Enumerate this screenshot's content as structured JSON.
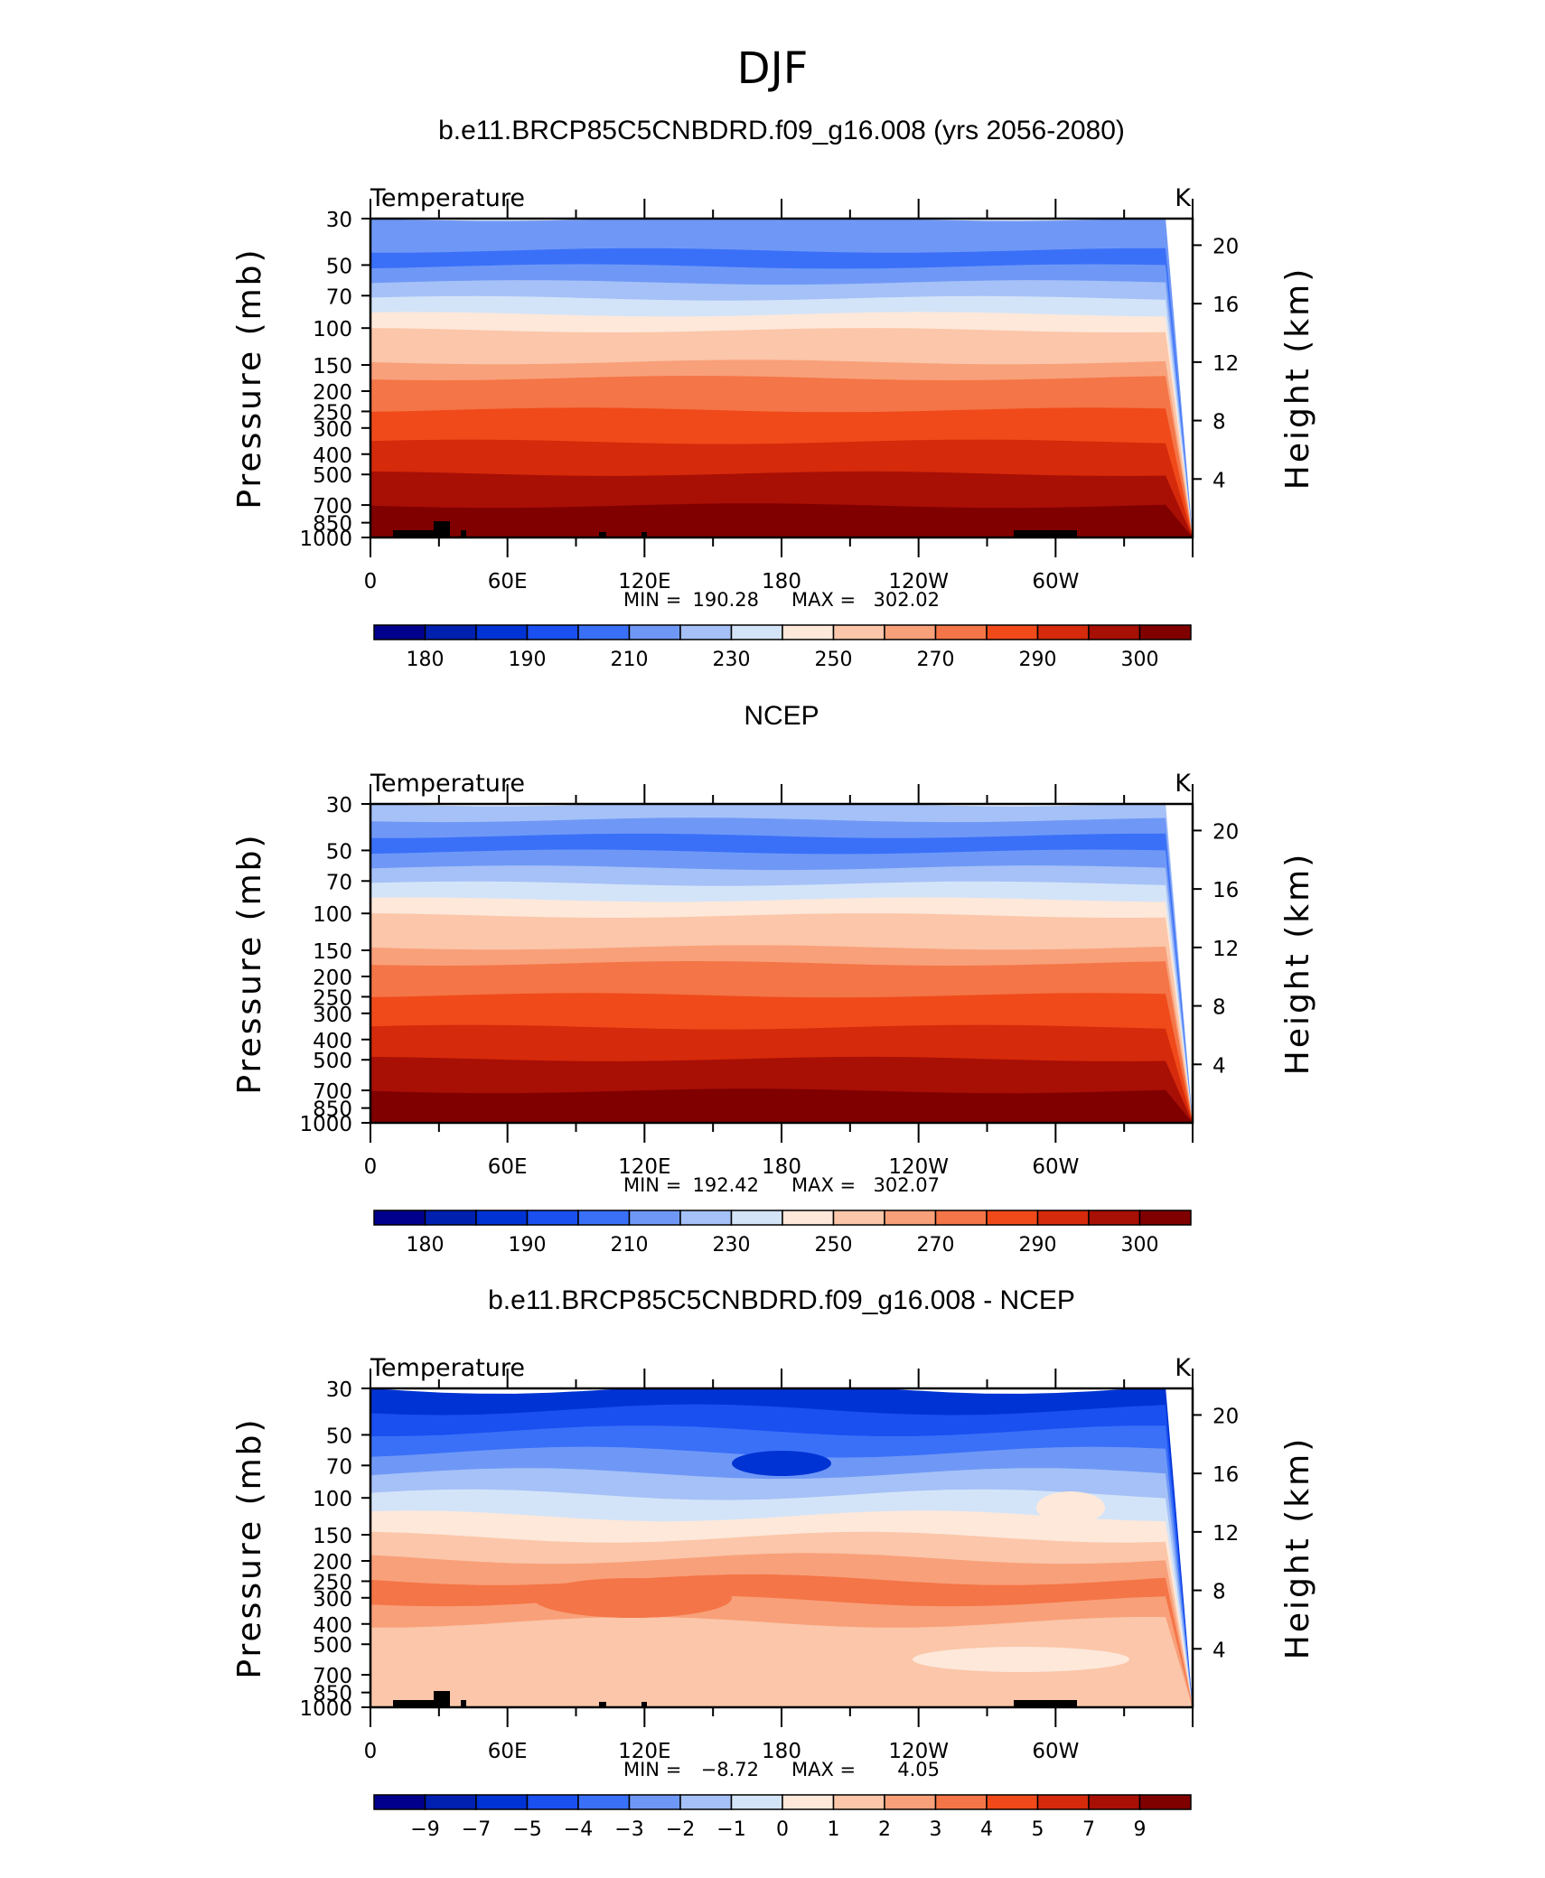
{
  "figure": {
    "title": "DJF"
  },
  "chart_data": [
    {
      "type": "heatmap",
      "title": "b.e11.BRCP85C5CNBDRD.f09_g16.008 (yrs 2056-2080)",
      "variable": "Temperature",
      "units": "K",
      "ylabel": "Pressure (mb)",
      "ylabel_right": "Height (km)",
      "x_ticks": [
        "0",
        "60E",
        "120E",
        "180",
        "120W",
        "60W"
      ],
      "y_ticks": [
        "30",
        "50",
        "70",
        "100",
        "150",
        "200",
        "250",
        "300",
        "400",
        "500",
        "700",
        "850",
        "1000"
      ],
      "y_ticks_right": [
        "20",
        "16",
        "12",
        "8",
        "4"
      ],
      "min_label": "MIN =",
      "min_value": "190.28",
      "max_label": "MAX =",
      "max_value": "302.02",
      "colorbar_labels": [
        "180",
        "190",
        "210",
        "230",
        "250",
        "270",
        "290",
        "300"
      ],
      "colorbar_levels": [
        175,
        180,
        185,
        190,
        200,
        210,
        220,
        230,
        240,
        250,
        260,
        270,
        280,
        290,
        295,
        300
      ],
      "level_bands": [
        205,
        200,
        195,
        205,
        215,
        222,
        232,
        240,
        248,
        254,
        260,
        266,
        272,
        278,
        283,
        287,
        290,
        293,
        296,
        299
      ],
      "topography": true
    },
    {
      "type": "heatmap",
      "title": "NCEP",
      "variable": "Temperature",
      "units": "K",
      "ylabel": "Pressure (mb)",
      "ylabel_right": "Height (km)",
      "x_ticks": [
        "0",
        "60E",
        "120E",
        "180",
        "120W",
        "60W"
      ],
      "y_ticks": [
        "30",
        "50",
        "70",
        "100",
        "150",
        "200",
        "250",
        "300",
        "400",
        "500",
        "700",
        "850",
        "1000"
      ],
      "y_ticks_right": [
        "20",
        "16",
        "12",
        "8",
        "4"
      ],
      "min_label": "MIN =",
      "min_value": "192.42",
      "max_label": "MAX =",
      "max_value": "302.07",
      "colorbar_labels": [
        "180",
        "190",
        "210",
        "230",
        "250",
        "270",
        "290",
        "300"
      ],
      "colorbar_levels": [
        175,
        180,
        185,
        190,
        200,
        210,
        220,
        230,
        240,
        250,
        260,
        270,
        280,
        290,
        295,
        300
      ],
      "level_bands": [
        215,
        205,
        195,
        205,
        215,
        222,
        232,
        240,
        248,
        254,
        260,
        266,
        272,
        278,
        283,
        287,
        290,
        293,
        296,
        299
      ],
      "topography": false
    },
    {
      "type": "heatmap",
      "title": "b.e11.BRCP85C5CNBDRD.f09_g16.008 - NCEP",
      "variable": "Temperature",
      "units": "K",
      "ylabel": "Pressure (mb)",
      "ylabel_right": "Height (km)",
      "x_ticks": [
        "0",
        "60E",
        "120E",
        "180",
        "120W",
        "60W"
      ],
      "y_ticks": [
        "30",
        "50",
        "70",
        "100",
        "150",
        "200",
        "250",
        "300",
        "400",
        "500",
        "700",
        "850",
        "1000"
      ],
      "y_ticks_right": [
        "20",
        "16",
        "12",
        "8",
        "4"
      ],
      "min_label": "MIN =",
      "min_value": "−8.72",
      "max_label": "MAX =",
      "max_value": "4.05",
      "colorbar_labels": [
        "−9",
        "−7",
        "−5",
        "−4",
        "−3",
        "−2",
        "−1",
        "0",
        "1",
        "2",
        "3",
        "4",
        "5",
        "7",
        "9"
      ],
      "colorbar_levels": [
        -9,
        -7,
        -5,
        -4,
        -3,
        -2,
        -1,
        0,
        1,
        2,
        3,
        4,
        5,
        7,
        9
      ],
      "level_bands": [
        -5.5,
        -4.5,
        -3.5,
        -2.5,
        -1.5,
        -0.5,
        0.5,
        1.5,
        2.5,
        3.5,
        2.5,
        1.5,
        1.5,
        1.5,
        1.5
      ],
      "topography": true
    }
  ],
  "colors": {
    "palette": [
      "#00008c",
      "#0020b0",
      "#0033d4",
      "#1a4ff0",
      "#3a70f8",
      "#6f98f6",
      "#a5c1f7",
      "#d4e4f8",
      "#fde8da",
      "#fbc6a9",
      "#f8a07a",
      "#f47547",
      "#f04a1a",
      "#d52a0b",
      "#a80f05",
      "#800000"
    ],
    "topography": "#000000"
  }
}
